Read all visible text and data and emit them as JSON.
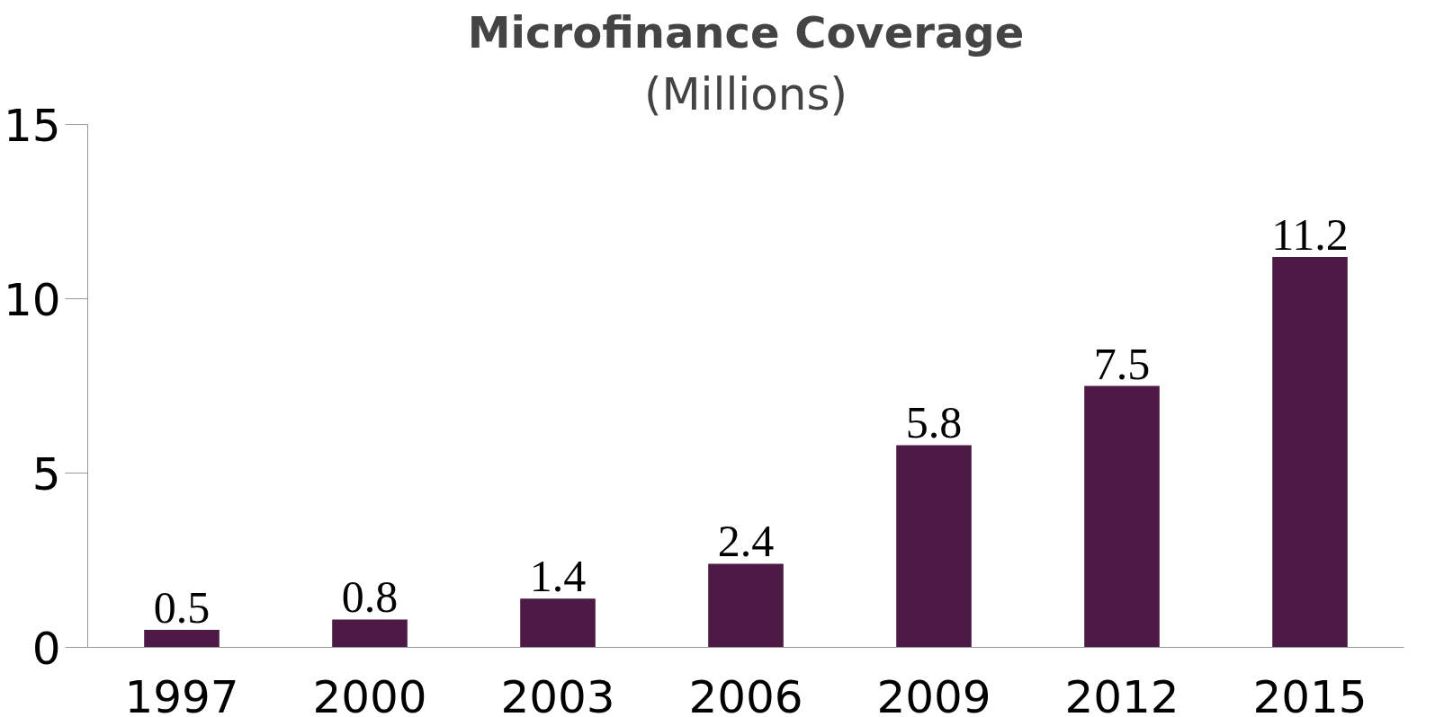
{
  "chart_data": {
    "type": "bar",
    "title": "Microfinance Coverage",
    "subtitle": "(Millions)",
    "categories": [
      "1997",
      "2000",
      "2003",
      "2006",
      "2009",
      "2012",
      "2015"
    ],
    "values": [
      0.5,
      0.8,
      1.4,
      2.4,
      5.8,
      7.5,
      11.2
    ],
    "color": "#4d1a45",
    "ylim": [
      0,
      15
    ],
    "yticks": [
      0,
      5,
      10,
      15
    ],
    "grid": false,
    "data_labels": true
  }
}
